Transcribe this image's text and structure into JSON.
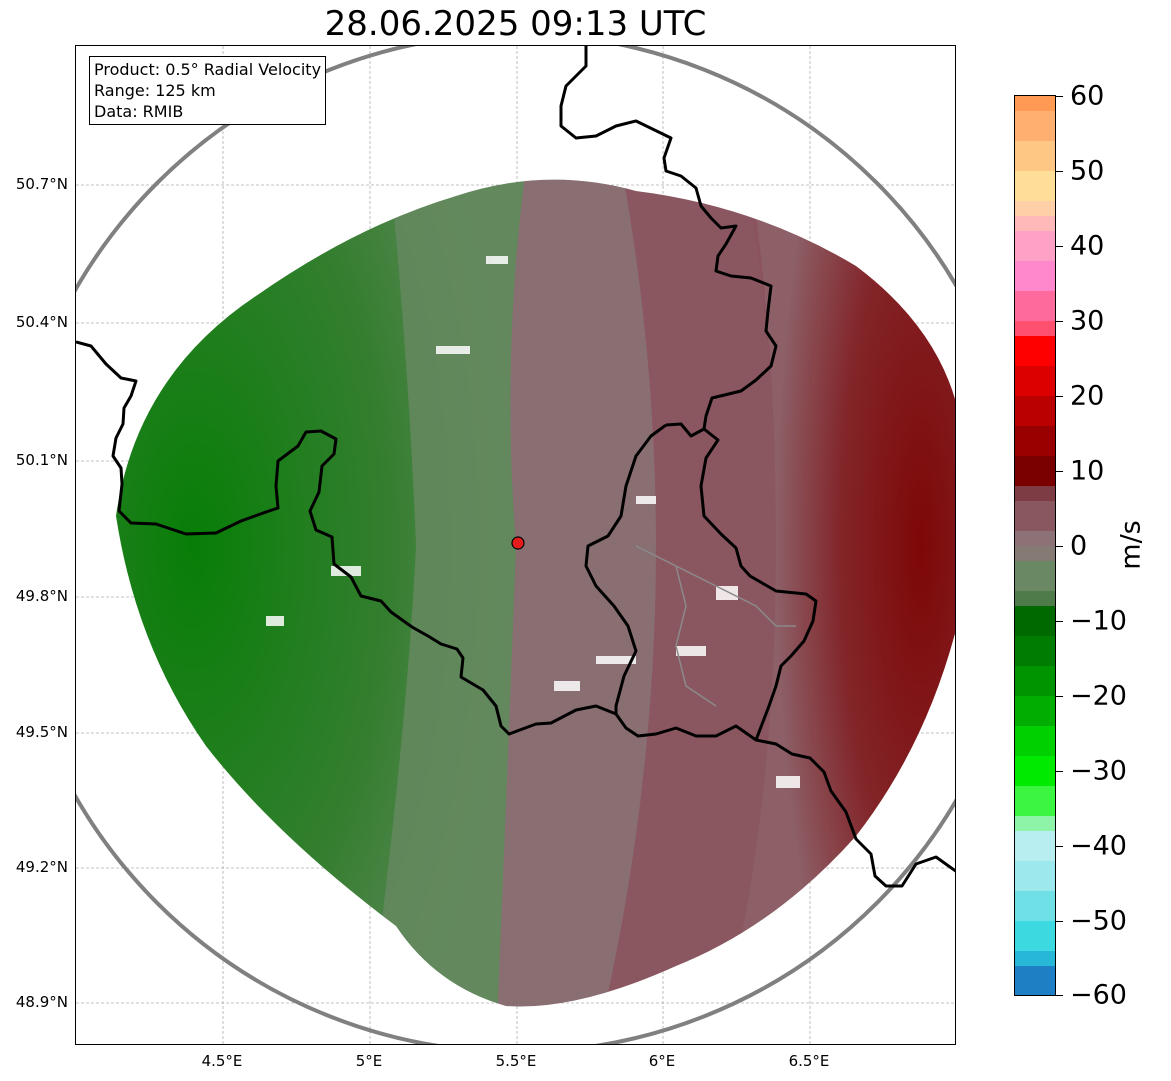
{
  "title": "28.06.2025 09:13 UTC",
  "info_box": {
    "product": "Product: 0.5° Radial Velocity",
    "range": "Range: 125 km",
    "data": "Data: RMIB"
  },
  "lat_labels": [
    "50.7°N",
    "50.4°N",
    "50.1°N",
    "49.8°N",
    "49.5°N",
    "49.2°N",
    "48.9°N"
  ],
  "lon_labels": [
    "4.5°E",
    "5°E",
    "5.5°E",
    "6°E",
    "6.5°E"
  ],
  "colorbar": {
    "unit": "m/s",
    "ticks": [
      "60",
      "50",
      "40",
      "30",
      "20",
      "10",
      "0",
      "−10",
      "−20",
      "−30",
      "−40",
      "−50",
      "−60"
    ]
  },
  "colors": {
    "inbound_strong": "#007000",
    "inbound_weak": "#5e8559",
    "zero": "#876f72",
    "outbound_weak": "#8a4d56",
    "outbound_strong": "#7a0000",
    "range_ring": "#808080",
    "radar_site": "#e51c1c"
  }
}
